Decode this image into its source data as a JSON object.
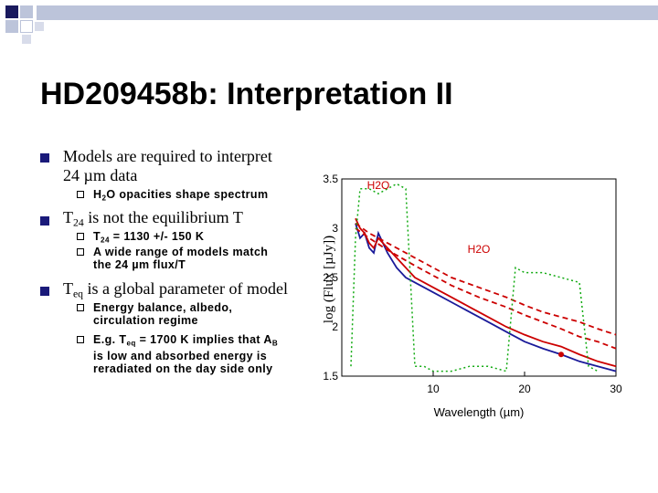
{
  "slide": {
    "title": "HD209458b: Interpretation II",
    "bullets": [
      {
        "text_main": "Models are required to interpret",
        "text_line2": "24 µm data",
        "subs": [
          {
            "prefix": "H",
            "sub": "2",
            "rest": "O opacities shape spectrum"
          }
        ]
      },
      {
        "prefix": "T",
        "sub": "24",
        "rest": " is not the equilibrium T",
        "subs": [
          {
            "prefix": "T",
            "sub": "24",
            "rest": " = 1130 +/- 150 K"
          },
          {
            "line1": "A wide range of models match",
            "line2": "the 24 µm flux/T"
          }
        ]
      },
      {
        "prefix": "T",
        "sub": "eq",
        "rest": " is a global parameter of model",
        "subs": [
          {
            "line1": "Energy balance, albedo,",
            "line2": "circulation regime"
          },
          {
            "line1_prefix": "E.g. T",
            "line1_sub": "eq",
            "line1_mid": " = 1700 K implies that A",
            "line1_sub2": "B",
            "line2": "is low and absorbed energy is",
            "line3": "reradiated on the day side only"
          }
        ]
      }
    ]
  },
  "chart_data": {
    "type": "line",
    "xlabel": "Wavelength (µm)",
    "ylabel": "log (Flux [µJy])",
    "xlim": [
      0,
      30
    ],
    "ylim": [
      1.5,
      3.5
    ],
    "x_ticks": [
      "10",
      "20",
      "30"
    ],
    "y_ticks": [
      "1.5",
      "2",
      "2.5",
      "3",
      "3.5"
    ],
    "annotations": [
      {
        "text": "H2O",
        "x": 4,
        "y": 3.4
      },
      {
        "text": "H2O",
        "x": 15,
        "y": 2.75
      }
    ],
    "series": [
      {
        "color": "#1a1a99",
        "x": [
          1.5,
          2,
          2.5,
          3,
          3.5,
          4,
          5,
          6,
          7,
          8,
          10,
          12,
          14,
          16,
          18,
          20,
          22,
          24,
          26,
          28,
          30
        ],
        "y": [
          3.05,
          2.9,
          2.95,
          2.8,
          2.75,
          2.95,
          2.75,
          2.6,
          2.5,
          2.45,
          2.35,
          2.25,
          2.15,
          2.05,
          1.95,
          1.85,
          1.78,
          1.72,
          1.65,
          1.6,
          1.55
        ]
      },
      {
        "color": "#cc0000",
        "x": [
          1.5,
          2,
          2.5,
          3,
          3.5,
          4,
          5,
          6,
          7,
          8,
          10,
          12,
          14,
          16,
          18,
          20,
          22,
          24,
          26,
          28,
          30
        ],
        "y": [
          3.1,
          3.0,
          2.95,
          2.85,
          2.8,
          2.9,
          2.8,
          2.7,
          2.6,
          2.5,
          2.4,
          2.3,
          2.2,
          2.1,
          2.0,
          1.92,
          1.85,
          1.8,
          1.72,
          1.65,
          1.6
        ]
      },
      {
        "color": "#cc0000",
        "dashed": true,
        "x": [
          1.5,
          3,
          5,
          8,
          10,
          12,
          15,
          18,
          20,
          22,
          24,
          26,
          28,
          30
        ],
        "y": [
          3.05,
          2.95,
          2.85,
          2.7,
          2.6,
          2.5,
          2.4,
          2.3,
          2.22,
          2.15,
          2.1,
          2.05,
          1.98,
          1.92
        ]
      },
      {
        "color": "#cc0000",
        "dashed": true,
        "x": [
          1.5,
          3,
          5,
          8,
          10,
          12,
          15,
          18,
          20,
          22,
          24,
          26,
          28,
          30
        ],
        "y": [
          3.0,
          2.9,
          2.78,
          2.62,
          2.52,
          2.42,
          2.3,
          2.2,
          2.12,
          2.05,
          1.98,
          1.9,
          1.85,
          1.78
        ]
      },
      {
        "color": "#11aa11",
        "dotted": true,
        "x": [
          1,
          1.5,
          2,
          3,
          4,
          5,
          6,
          7,
          8,
          9,
          10,
          12,
          14,
          16,
          18,
          19,
          20,
          22,
          24,
          26,
          27,
          28
        ],
        "y": [
          1.6,
          2.9,
          3.4,
          3.4,
          3.35,
          3.4,
          3.45,
          3.4,
          1.6,
          1.6,
          1.55,
          1.55,
          1.6,
          1.6,
          1.55,
          2.6,
          2.55,
          2.55,
          2.5,
          2.45,
          1.6,
          1.55
        ]
      }
    ],
    "points": [
      {
        "color": "#cc0000",
        "x": 24,
        "y": 1.72
      }
    ]
  }
}
